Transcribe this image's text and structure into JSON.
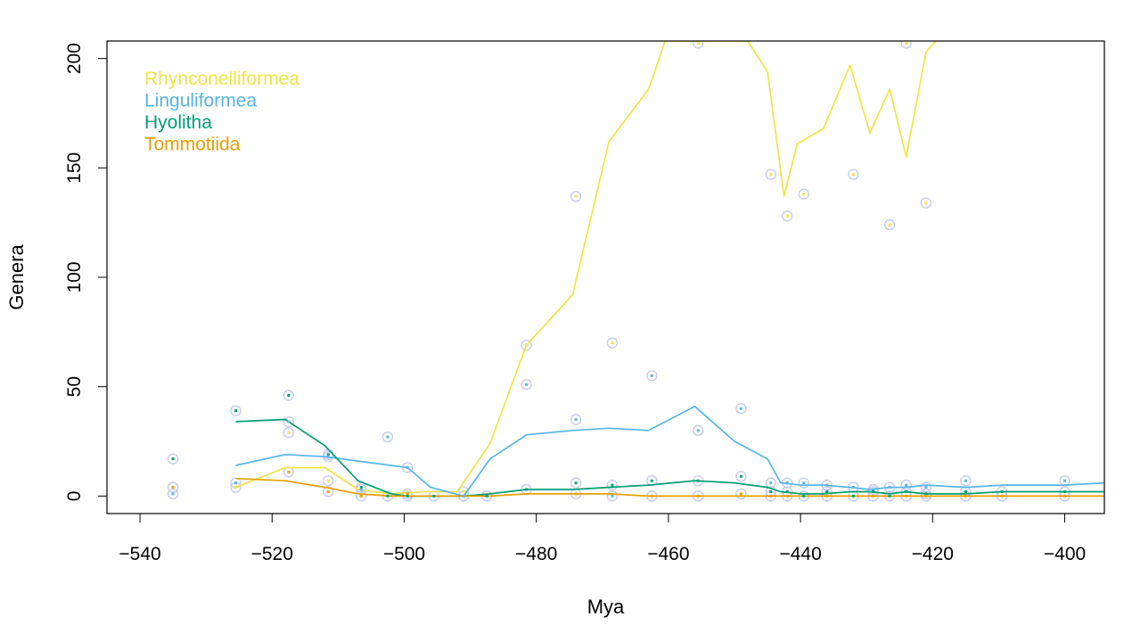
{
  "chart_data": {
    "type": "line",
    "title": "",
    "xlabel": "Mya",
    "ylabel": "Genera",
    "xlim": [
      -545,
      -394
    ],
    "ylim": [
      -8,
      208
    ],
    "xticks": [
      -540,
      -520,
      -500,
      -480,
      -460,
      -440,
      -420,
      -400
    ],
    "yticks": [
      0,
      50,
      100,
      150,
      200
    ],
    "grid": false,
    "legend_position": "top-left",
    "colors": {
      "Rhynconelliformea": "#f0e442",
      "Linguliformea": "#56b4e9",
      "Hyolitha": "#009e73",
      "Tommotiida": "#e69f00",
      "circle": "#c5cbe8"
    },
    "series": [
      {
        "name": "Rhynconelliformea",
        "x": [
          -525.5,
          -518,
          -512,
          -507,
          -502,
          -497,
          -492,
          -487,
          -481.5,
          -474.5,
          -469,
          -463,
          -460.5,
          -448,
          -445,
          -442.5,
          -440.5,
          -436.5,
          -432.5,
          -429.5,
          -426.5,
          -424,
          -421,
          -419.5
        ],
        "y": [
          4,
          13,
          13,
          3,
          1,
          2,
          2,
          24,
          69,
          92,
          162,
          186,
          208,
          208,
          194,
          137,
          161,
          168,
          197,
          166,
          186,
          155,
          203,
          208
        ]
      },
      {
        "name": "Linguliformea",
        "x": [
          -525.5,
          -518,
          -512,
          -507,
          -502,
          -499.5,
          -496,
          -491,
          -487,
          -481.5,
          -474.5,
          -469,
          -463,
          -456,
          -450,
          -445,
          -443,
          -440,
          -436.5,
          -432.5,
          -429.5,
          -426.5,
          -424,
          -421,
          -415,
          -409.5,
          -400,
          -394
        ],
        "y": [
          14,
          19,
          18,
          16,
          14,
          13,
          4,
          0,
          17,
          28,
          30,
          31,
          30,
          41,
          25,
          17,
          6,
          5,
          5,
          4,
          3,
          4,
          4,
          5,
          4,
          5,
          5,
          6
        ]
      },
      {
        "name": "Hyolitha",
        "x": [
          -525.5,
          -518,
          -512,
          -507,
          -502,
          -499.5,
          -496,
          -491,
          -487,
          -481.5,
          -474.5,
          -469,
          -463,
          -456,
          -450,
          -445,
          -443,
          -440,
          -436.5,
          -432.5,
          -429.5,
          -426.5,
          -424,
          -421,
          -415,
          -409.5,
          -400,
          -394
        ],
        "y": [
          34,
          35,
          23,
          7,
          1,
          0,
          0,
          0,
          1,
          3,
          3,
          4,
          5,
          7,
          6,
          4,
          2,
          1,
          1,
          2,
          2,
          1,
          2,
          1,
          1,
          2,
          2,
          2
        ]
      },
      {
        "name": "Tommotiida",
        "x": [
          -525.5,
          -518,
          -512,
          -507,
          -502,
          -499.5,
          -496,
          -491,
          -487,
          -481.5,
          -474.5,
          -469,
          -463,
          -456,
          -450,
          -445,
          -443,
          -440,
          -436.5,
          -432.5,
          -429.5,
          -426.5,
          -424,
          -421,
          -415,
          -409.5,
          -400,
          -394
        ],
        "y": [
          8,
          7,
          4,
          1,
          0,
          0,
          0,
          0,
          0,
          1,
          1,
          1,
          0,
          0,
          0,
          0,
          0,
          0,
          0,
          0,
          0,
          0,
          0,
          0,
          0,
          0,
          0,
          0
        ]
      }
    ],
    "points": [
      {
        "x": -535,
        "y": 17,
        "series": "Hyolitha"
      },
      {
        "x": -535,
        "y": 4,
        "series": "Tommotiida"
      },
      {
        "x": -535,
        "y": 1,
        "series": "Linguliformea"
      },
      {
        "x": -525.5,
        "y": 39,
        "series": "Hyolitha"
      },
      {
        "x": -525.5,
        "y": 6,
        "series": "Linguliformea"
      },
      {
        "x": -525.5,
        "y": 4,
        "series": "Rhynconelliformea"
      },
      {
        "x": -517.5,
        "y": 46,
        "series": "Hyolitha"
      },
      {
        "x": -517.5,
        "y": 34,
        "series": "Linguliformea"
      },
      {
        "x": -517.5,
        "y": 29,
        "series": "Rhynconelliformea"
      },
      {
        "x": -517.5,
        "y": 11,
        "series": "Tommotiida"
      },
      {
        "x": -511.5,
        "y": 19,
        "series": "Hyolitha"
      },
      {
        "x": -511.5,
        "y": 18,
        "series": "Linguliformea"
      },
      {
        "x": -511.5,
        "y": 7,
        "series": "Rhynconelliformea"
      },
      {
        "x": -511.5,
        "y": 2,
        "series": "Tommotiida"
      },
      {
        "x": -506.5,
        "y": 4,
        "series": "Hyolitha"
      },
      {
        "x": -506.5,
        "y": 3,
        "series": "Linguliformea"
      },
      {
        "x": -506.5,
        "y": 0,
        "series": "Tommotiida"
      },
      {
        "x": -502.5,
        "y": 27,
        "series": "Linguliformea"
      },
      {
        "x": -502.5,
        "y": 0,
        "series": "Hyolitha"
      },
      {
        "x": -499.5,
        "y": 13,
        "series": "Linguliformea"
      },
      {
        "x": -499.5,
        "y": 1,
        "series": "Tommotiida"
      },
      {
        "x": -499.5,
        "y": 0,
        "series": "Hyolitha"
      },
      {
        "x": -495.5,
        "y": 0,
        "series": "Hyolitha"
      },
      {
        "x": -491,
        "y": 2,
        "series": "Rhynconelliformea"
      },
      {
        "x": -491,
        "y": 0,
        "series": "Linguliformea"
      },
      {
        "x": -487.5,
        "y": 0,
        "series": "Hyolitha"
      },
      {
        "x": -481.5,
        "y": 69,
        "series": "Rhynconelliformea"
      },
      {
        "x": -481.5,
        "y": 51,
        "series": "Linguliformea"
      },
      {
        "x": -481.5,
        "y": 3,
        "series": "Hyolitha"
      },
      {
        "x": -474,
        "y": 137,
        "series": "Rhynconelliformea"
      },
      {
        "x": -474,
        "y": 35,
        "series": "Linguliformea"
      },
      {
        "x": -474,
        "y": 6,
        "series": "Hyolitha"
      },
      {
        "x": -474,
        "y": 1,
        "series": "Tommotiida"
      },
      {
        "x": -468.5,
        "y": 70,
        "series": "Rhynconelliformea"
      },
      {
        "x": -468.5,
        "y": 5,
        "series": "Hyolitha"
      },
      {
        "x": -468.5,
        "y": 0,
        "series": "Linguliformea"
      },
      {
        "x": -462.5,
        "y": 55,
        "series": "Linguliformea"
      },
      {
        "x": -462.5,
        "y": 7,
        "series": "Hyolitha"
      },
      {
        "x": -462.5,
        "y": 0,
        "series": "Tommotiida"
      },
      {
        "x": -455.5,
        "y": 207,
        "series": "Rhynconelliformea"
      },
      {
        "x": -455.5,
        "y": 30,
        "series": "Linguliformea"
      },
      {
        "x": -455.5,
        "y": 7,
        "series": "Hyolitha"
      },
      {
        "x": -455.5,
        "y": 0,
        "series": "Tommotiida"
      },
      {
        "x": -449,
        "y": 40,
        "series": "Linguliformea"
      },
      {
        "x": -449,
        "y": 9,
        "series": "Hyolitha"
      },
      {
        "x": -449,
        "y": 1,
        "series": "Tommotiida"
      },
      {
        "x": -444.5,
        "y": 147,
        "series": "Rhynconelliformea"
      },
      {
        "x": -444.5,
        "y": 6,
        "series": "Linguliformea"
      },
      {
        "x": -444.5,
        "y": 2,
        "series": "Hyolitha"
      },
      {
        "x": -444.5,
        "y": 0,
        "series": "Tommotiida"
      },
      {
        "x": -442,
        "y": 128,
        "series": "Rhynconelliformea"
      },
      {
        "x": -442,
        "y": 6,
        "series": "Linguliformea"
      },
      {
        "x": -442,
        "y": 2,
        "series": "Hyolitha"
      },
      {
        "x": -442,
        "y": 0,
        "series": "Tommotiida"
      },
      {
        "x": -439.5,
        "y": 138,
        "series": "Rhynconelliformea"
      },
      {
        "x": -439.5,
        "y": 6,
        "series": "Linguliformea"
      },
      {
        "x": -439.5,
        "y": 0,
        "series": "Hyolitha"
      },
      {
        "x": -436,
        "y": 5,
        "series": "Linguliformea"
      },
      {
        "x": -436,
        "y": 2,
        "series": "Hyolitha"
      },
      {
        "x": -436,
        "y": 0,
        "series": "Tommotiida"
      },
      {
        "x": -432,
        "y": 147,
        "series": "Rhynconelliformea"
      },
      {
        "x": -432,
        "y": 4,
        "series": "Linguliformea"
      },
      {
        "x": -432,
        "y": 0,
        "series": "Hyolitha"
      },
      {
        "x": -429,
        "y": 3,
        "series": "Linguliformea"
      },
      {
        "x": -429,
        "y": 2,
        "series": "Hyolitha"
      },
      {
        "x": -429,
        "y": 0,
        "series": "Tommotiida"
      },
      {
        "x": -426.5,
        "y": 124,
        "series": "Rhynconelliformea"
      },
      {
        "x": -426.5,
        "y": 4,
        "series": "Linguliformea"
      },
      {
        "x": -426.5,
        "y": 0,
        "series": "Hyolitha"
      },
      {
        "x": -424,
        "y": 207,
        "series": "Rhynconelliformea"
      },
      {
        "x": -424,
        "y": 5,
        "series": "Linguliformea"
      },
      {
        "x": -424,
        "y": 2,
        "series": "Hyolitha"
      },
      {
        "x": -424,
        "y": 0,
        "series": "Tommotiida"
      },
      {
        "x": -421,
        "y": 134,
        "series": "Rhynconelliformea"
      },
      {
        "x": -421,
        "y": 4,
        "series": "Linguliformea"
      },
      {
        "x": -421,
        "y": 1,
        "series": "Hyolitha"
      },
      {
        "x": -421,
        "y": 0,
        "series": "Tommotiida"
      },
      {
        "x": -415,
        "y": 7,
        "series": "Linguliformea"
      },
      {
        "x": -415,
        "y": 2,
        "series": "Hyolitha"
      },
      {
        "x": -415,
        "y": 0,
        "series": "Tommotiida"
      },
      {
        "x": -409.5,
        "y": 2,
        "series": "Hyolitha"
      },
      {
        "x": -409.5,
        "y": 0,
        "series": "Tommotiida"
      },
      {
        "x": -400,
        "y": 7,
        "series": "Linguliformea"
      },
      {
        "x": -400,
        "y": 2,
        "series": "Hyolitha"
      },
      {
        "x": -400,
        "y": 0,
        "series": "Tommotiida"
      }
    ]
  }
}
